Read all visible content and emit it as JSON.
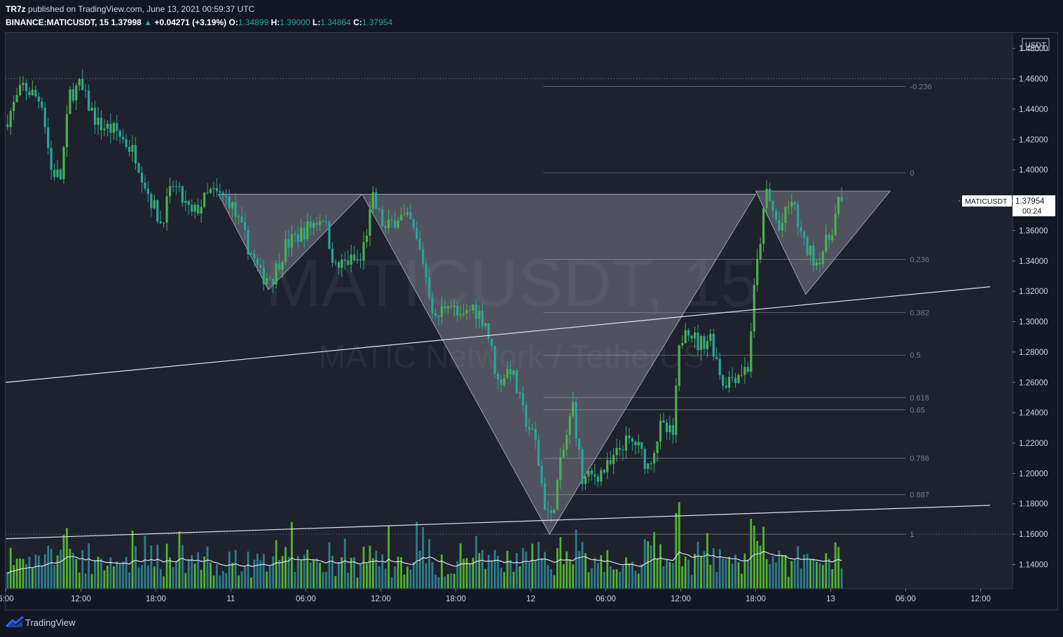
{
  "header": {
    "publisher": "TR7z",
    "published_text": "published on TradingView.com, June 13, 2021 00:59:37 UTC",
    "symbol": "BINANCE:MATICUSDT, 15",
    "last": "1.37998",
    "change": "+0.04271 (+3.19%)",
    "o_label": "O:",
    "o": "1.34899",
    "h_label": "H:",
    "h": "1.39000",
    "l_label": "L:",
    "l": "1.34864",
    "c_label": "C:",
    "c": "1.37954"
  },
  "watermark": {
    "symbol": "MATICUSDT, 15",
    "name": "MATIC Network / TetherUS"
  },
  "price_axis": {
    "currency": "USDT",
    "tag_symbol": "MATICUSDT",
    "tag_price": "1.37954",
    "tag_countdown": "00:24"
  },
  "footer": {
    "brand": "TradingView"
  },
  "colors": {
    "background": "#131722",
    "panel": "#1e222d",
    "up": "#4caf50",
    "down": "#26a69a",
    "vol_up": "#52b32f",
    "vol_down": "#2d7d8b",
    "pattern": "#9598a1",
    "text": "#d1d4dc"
  },
  "chart_data": {
    "type": "candlestick",
    "interval": "15m",
    "ylim": [
      1.13,
      1.49
    ],
    "y_ticks": [
      {
        "value": 1.48,
        "label": "1.48000"
      },
      {
        "value": 1.46,
        "label": "1.46000"
      },
      {
        "value": 1.44,
        "label": "1.44000"
      },
      {
        "value": 1.42,
        "label": "1.42000"
      },
      {
        "value": 1.4,
        "label": "1.40000"
      },
      {
        "value": 1.38,
        "label": "1.38000"
      },
      {
        "value": 1.36,
        "label": "1.36000"
      },
      {
        "value": 1.34,
        "label": "1.34000"
      },
      {
        "value": 1.32,
        "label": "1.32000"
      },
      {
        "value": 1.3,
        "label": "1.30000"
      },
      {
        "value": 1.28,
        "label": "1.28000"
      },
      {
        "value": 1.26,
        "label": "1.26000"
      },
      {
        "value": 1.24,
        "label": "1.24000"
      },
      {
        "value": 1.22,
        "label": "1.22000"
      },
      {
        "value": 1.2,
        "label": "1.20000"
      },
      {
        "value": 1.18,
        "label": "1.18000"
      },
      {
        "value": 1.16,
        "label": "1.16000"
      },
      {
        "value": 1.14,
        "label": "1.14000"
      }
    ],
    "x_start": "2021-06-10 06:00",
    "x_ticks": [
      {
        "time": "2021-06-10 06:00",
        "label": "6:00"
      },
      {
        "time": "2021-06-10 12:00",
        "label": "12:00"
      },
      {
        "time": "2021-06-10 18:00",
        "label": "18:00"
      },
      {
        "time": "2021-06-11 00:00",
        "label": "11"
      },
      {
        "time": "2021-06-11 06:00",
        "label": "06:00"
      },
      {
        "time": "2021-06-11 12:00",
        "label": "12:00"
      },
      {
        "time": "2021-06-11 18:00",
        "label": "18:00"
      },
      {
        "time": "2021-06-12 00:00",
        "label": "12"
      },
      {
        "time": "2021-06-12 06:00",
        "label": "06:00"
      },
      {
        "time": "2021-06-12 12:00",
        "label": "12:00"
      },
      {
        "time": "2021-06-12 18:00",
        "label": "18:00"
      },
      {
        "time": "2021-06-13 00:00",
        "label": "13"
      },
      {
        "time": "2021-06-13 06:00",
        "label": "06:00"
      },
      {
        "time": "2021-06-13 12:00",
        "label": "12:00"
      }
    ],
    "price_path": [
      [
        "2021-06-10 06:00",
        1.43
      ],
      [
        "2021-06-10 07:30",
        1.455
      ],
      [
        "2021-06-10 09:00",
        1.445
      ],
      [
        "2021-06-10 09:45",
        1.4
      ],
      [
        "2021-06-10 10:30",
        1.395
      ],
      [
        "2021-06-10 11:15",
        1.45
      ],
      [
        "2021-06-10 12:00",
        1.455
      ],
      [
        "2021-06-10 13:30",
        1.43
      ],
      [
        "2021-06-10 15:00",
        1.425
      ],
      [
        "2021-06-10 16:30",
        1.41
      ],
      [
        "2021-06-10 17:30",
        1.385
      ],
      [
        "2021-06-10 18:30",
        1.365
      ],
      [
        "2021-06-10 19:30",
        1.39
      ],
      [
        "2021-06-10 21:00",
        1.37
      ],
      [
        "2021-06-10 22:30",
        1.385
      ],
      [
        "2021-06-11 00:00",
        1.38
      ],
      [
        "2021-06-11 01:00",
        1.36
      ],
      [
        "2021-06-11 02:30",
        1.33
      ],
      [
        "2021-06-11 03:30",
        1.33
      ],
      [
        "2021-06-11 04:30",
        1.35
      ],
      [
        "2021-06-11 06:00",
        1.36
      ],
      [
        "2021-06-11 07:30",
        1.37
      ],
      [
        "2021-06-11 08:30",
        1.335
      ],
      [
        "2021-06-11 09:30",
        1.34
      ],
      [
        "2021-06-11 10:30",
        1.34
      ],
      [
        "2021-06-11 11:00",
        1.36
      ],
      [
        "2021-06-11 11:30",
        1.38
      ],
      [
        "2021-06-11 12:30",
        1.36
      ],
      [
        "2021-06-11 13:30",
        1.37
      ],
      [
        "2021-06-11 14:30",
        1.365
      ],
      [
        "2021-06-11 15:30",
        1.34
      ],
      [
        "2021-06-11 16:30",
        1.3
      ],
      [
        "2021-06-11 17:30",
        1.315
      ],
      [
        "2021-06-11 18:30",
        1.3
      ],
      [
        "2021-06-11 19:30",
        1.31
      ],
      [
        "2021-06-11 20:30",
        1.3
      ],
      [
        "2021-06-11 21:30",
        1.26
      ],
      [
        "2021-06-11 22:30",
        1.27
      ],
      [
        "2021-06-11 23:30",
        1.24
      ],
      [
        "2021-06-12 00:30",
        1.22
      ],
      [
        "2021-06-12 01:15",
        1.18
      ],
      [
        "2021-06-12 01:45",
        1.17
      ],
      [
        "2021-06-12 02:30",
        1.205
      ],
      [
        "2021-06-12 03:30",
        1.245
      ],
      [
        "2021-06-12 04:15",
        1.195
      ],
      [
        "2021-06-12 05:30",
        1.2
      ],
      [
        "2021-06-12 06:30",
        1.205
      ],
      [
        "2021-06-12 07:30",
        1.22
      ],
      [
        "2021-06-12 08:30",
        1.22
      ],
      [
        "2021-06-12 09:30",
        1.205
      ],
      [
        "2021-06-12 10:30",
        1.23
      ],
      [
        "2021-06-12 11:30",
        1.225
      ],
      [
        "2021-06-12 12:00",
        1.28
      ],
      [
        "2021-06-12 12:30",
        1.3
      ],
      [
        "2021-06-12 13:30",
        1.285
      ],
      [
        "2021-06-12 14:30",
        1.29
      ],
      [
        "2021-06-12 15:30",
        1.26
      ],
      [
        "2021-06-12 16:30",
        1.265
      ],
      [
        "2021-06-12 17:30",
        1.27
      ],
      [
        "2021-06-12 18:00",
        1.32
      ],
      [
        "2021-06-12 18:30",
        1.355
      ],
      [
        "2021-06-12 19:00",
        1.385
      ],
      [
        "2021-06-12 20:00",
        1.36
      ],
      [
        "2021-06-12 21:00",
        1.38
      ],
      [
        "2021-06-12 22:00",
        1.35
      ],
      [
        "2021-06-12 23:00",
        1.34
      ],
      [
        "2021-06-13 00:00",
        1.355
      ],
      [
        "2021-06-13 00:30",
        1.37
      ],
      [
        "2021-06-13 00:45",
        1.37954
      ]
    ],
    "volume_axis_note": "volume histogram with moving average, unscaled",
    "fib_levels": [
      {
        "ratio": "-0.236",
        "price": 1.455
      },
      {
        "ratio": "0",
        "price": 1.398
      },
      {
        "ratio": "0.236",
        "price": 1.341
      },
      {
        "ratio": "0.382",
        "price": 1.306
      },
      {
        "ratio": "0.5",
        "price": 1.278
      },
      {
        "ratio": "0.618",
        "price": 1.25
      },
      {
        "ratio": "0.65",
        "price": 1.242
      },
      {
        "ratio": "0.786",
        "price": 1.21
      },
      {
        "ratio": "0.887",
        "price": 1.186
      },
      {
        "ratio": "1",
        "price": 1.16
      }
    ],
    "fib_time_range": [
      "2021-06-12 01:00",
      "2021-06-13 06:00"
    ],
    "dotted_levels": [
      1.46,
      1.16
    ],
    "trendlines": [
      {
        "from": [
          "2021-06-10 06:00",
          1.26
        ],
        "to": [
          "2021-06-13 12:45",
          1.323
        ]
      },
      {
        "from": [
          "2021-06-10 06:00",
          1.157
        ],
        "to": [
          "2021-06-13 12:45",
          1.179
        ]
      }
    ],
    "triangles": [
      [
        [
          "2021-06-10 23:00",
          1.384
        ],
        [
          "2021-06-11 10:30",
          1.384
        ],
        [
          "2021-06-11 03:00",
          1.321
        ]
      ],
      [
        [
          "2021-06-11 10:30",
          1.384
        ],
        [
          "2021-06-12 18:00",
          1.384
        ],
        [
          "2021-06-12 01:30",
          1.16
        ]
      ],
      [
        [
          "2021-06-12 18:00",
          1.386
        ],
        [
          "2021-06-13 04:45",
          1.386
        ],
        [
          "2021-06-12 22:00",
          1.318
        ]
      ]
    ]
  }
}
